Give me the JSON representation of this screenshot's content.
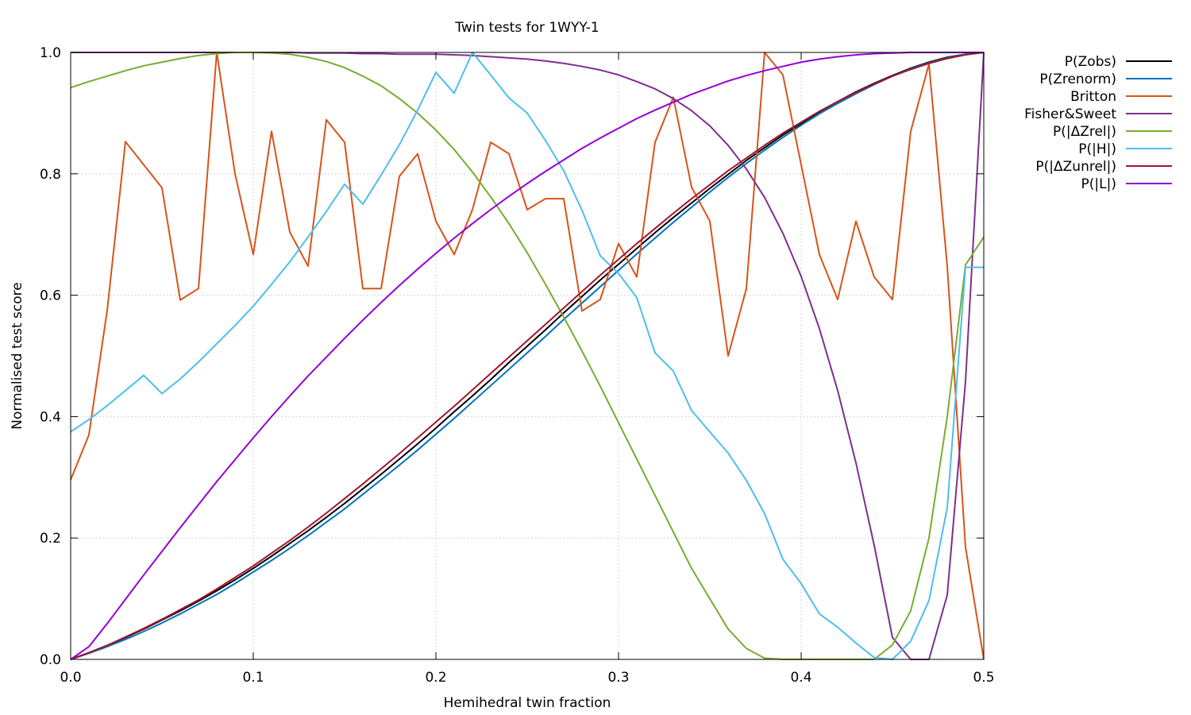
{
  "chart_data": {
    "type": "line",
    "title": "Twin tests for 1WYY-1",
    "xlabel": "Hemihedral twin fraction",
    "ylabel": "Normalised test score",
    "xlim": [
      0,
      0.5
    ],
    "ylim": [
      0,
      1
    ],
    "grid": true,
    "legend_position": "outside-right-top",
    "x_ticks": [
      "0.0",
      "0.1",
      "0.2",
      "0.3",
      "0.4",
      "0.5"
    ],
    "y_ticks": [
      "0.0",
      "0.2",
      "0.4",
      "0.6",
      "0.8",
      "1.0"
    ],
    "x": [
      0.0,
      0.01,
      0.02,
      0.03,
      0.04,
      0.05,
      0.06,
      0.07,
      0.08,
      0.09,
      0.1,
      0.11,
      0.12,
      0.13,
      0.14,
      0.15,
      0.16,
      0.17,
      0.18,
      0.19,
      0.2,
      0.21,
      0.22,
      0.23,
      0.24,
      0.25,
      0.26,
      0.27,
      0.28,
      0.29,
      0.3,
      0.31,
      0.32,
      0.33,
      0.34,
      0.35,
      0.36,
      0.37,
      0.38,
      0.39,
      0.4,
      0.41,
      0.42,
      0.43,
      0.44,
      0.45,
      0.46,
      0.47,
      0.48,
      0.49,
      0.5
    ],
    "series": [
      {
        "name": "P(Zobs)",
        "color": "#000000",
        "values": [
          0,
          0.011,
          0.023,
          0.036,
          0.05,
          0.065,
          0.08,
          0.096,
          0.113,
          0.131,
          0.15,
          0.17,
          0.191,
          0.212,
          0.234,
          0.257,
          0.281,
          0.305,
          0.33,
          0.355,
          0.381,
          0.408,
          0.434,
          0.461,
          0.489,
          0.516,
          0.543,
          0.571,
          0.598,
          0.625,
          0.651,
          0.677,
          0.703,
          0.728,
          0.752,
          0.776,
          0.799,
          0.822,
          0.843,
          0.864,
          0.883,
          0.902,
          0.919,
          0.935,
          0.949,
          0.962,
          0.974,
          0.984,
          0.992,
          0.997,
          1.0
        ]
      },
      {
        "name": "P(Zrenorm)",
        "color": "#0072bd",
        "values": [
          0,
          0.01,
          0.021,
          0.033,
          0.046,
          0.06,
          0.075,
          0.091,
          0.107,
          0.125,
          0.144,
          0.163,
          0.183,
          0.204,
          0.226,
          0.248,
          0.272,
          0.296,
          0.32,
          0.345,
          0.371,
          0.397,
          0.424,
          0.451,
          0.478,
          0.505,
          0.532,
          0.56,
          0.587,
          0.614,
          0.641,
          0.668,
          0.694,
          0.72,
          0.745,
          0.77,
          0.794,
          0.817,
          0.839,
          0.86,
          0.88,
          0.899,
          0.916,
          0.932,
          0.947,
          0.961,
          0.973,
          0.983,
          0.991,
          0.997,
          1.0
        ]
      },
      {
        "name": "Britton",
        "color": "#d95319",
        "values": [
          0.296,
          0.37,
          0.575,
          0.853,
          0.815,
          0.777,
          0.592,
          0.611,
          1.0,
          0.8,
          0.667,
          0.87,
          0.704,
          0.648,
          0.889,
          0.852,
          0.611,
          0.611,
          0.796,
          0.833,
          0.722,
          0.667,
          0.741,
          0.852,
          0.833,
          0.741,
          0.759,
          0.759,
          0.574,
          0.593,
          0.685,
          0.63,
          0.852,
          0.926,
          0.778,
          0.722,
          0.5,
          0.611,
          1.0,
          0.963,
          0.815,
          0.667,
          0.593,
          0.722,
          0.63,
          0.593,
          0.87,
          0.981,
          0.648,
          0.185,
          0.0
        ]
      },
      {
        "name": "Fisher&Sweet",
        "color": "#7e2f8e",
        "values": [
          1.0,
          1.0,
          1.0,
          1.0,
          1.0,
          1.0,
          1.0,
          1.0,
          1.0,
          1.0,
          1.0,
          1.0,
          1.0,
          0.999,
          0.999,
          0.999,
          0.998,
          0.998,
          0.997,
          0.997,
          0.997,
          0.996,
          0.995,
          0.993,
          0.991,
          0.989,
          0.986,
          0.982,
          0.977,
          0.971,
          0.963,
          0.952,
          0.94,
          0.924,
          0.904,
          0.879,
          0.847,
          0.808,
          0.761,
          0.702,
          0.631,
          0.545,
          0.443,
          0.324,
          0.188,
          0.036,
          0.0,
          0.0,
          0.106,
          0.458,
          1.0
        ]
      },
      {
        "name": "P(|ΔZrel|)",
        "color": "#77ac30",
        "values": [
          0.942,
          0.952,
          0.961,
          0.97,
          0.978,
          0.984,
          0.99,
          0.995,
          0.998,
          1.0,
          1.0,
          0.999,
          0.997,
          0.992,
          0.985,
          0.975,
          0.961,
          0.945,
          0.924,
          0.9,
          0.872,
          0.84,
          0.803,
          0.762,
          0.718,
          0.67,
          0.618,
          0.564,
          0.508,
          0.45,
          0.39,
          0.33,
          0.27,
          0.21,
          0.15,
          0.1,
          0.05,
          0.018,
          0.002,
          0.0,
          0.0,
          0.0,
          0.0,
          0.0,
          0.0,
          0.024,
          0.08,
          0.2,
          0.4,
          0.65,
          0.696
        ]
      },
      {
        "name": "P(|H|)",
        "color": "#4dbeee",
        "values": [
          0.375,
          0.395,
          0.418,
          0.443,
          0.468,
          0.438,
          0.462,
          0.49,
          0.52,
          0.55,
          0.582,
          0.618,
          0.655,
          0.696,
          0.738,
          0.783,
          0.75,
          0.798,
          0.848,
          0.905,
          0.967,
          0.933,
          1.0,
          0.963,
          0.925,
          0.9,
          0.855,
          0.805,
          0.74,
          0.665,
          0.636,
          0.596,
          0.505,
          0.475,
          0.41,
          0.375,
          0.34,
          0.295,
          0.24,
          0.165,
          0.125,
          0.075,
          0.053,
          0.027,
          0.003,
          0.0,
          0.03,
          0.097,
          0.25,
          0.646,
          0.646
        ]
      },
      {
        "name": "P(|ΔZunrel|)",
        "color": "#a2142f",
        "values": [
          0,
          0.011,
          0.023,
          0.037,
          0.051,
          0.066,
          0.082,
          0.098,
          0.116,
          0.135,
          0.154,
          0.175,
          0.196,
          0.218,
          0.241,
          0.265,
          0.289,
          0.314,
          0.339,
          0.365,
          0.391,
          0.417,
          0.444,
          0.471,
          0.498,
          0.525,
          0.552,
          0.579,
          0.606,
          0.633,
          0.659,
          0.685,
          0.71,
          0.735,
          0.759,
          0.782,
          0.805,
          0.826,
          0.847,
          0.867,
          0.885,
          0.903,
          0.919,
          0.934,
          0.948,
          0.961,
          0.972,
          0.982,
          0.99,
          0.996,
          1.0
        ]
      },
      {
        "name": "P(|L|)",
        "color": "#9400d3",
        "values": [
          0,
          0.021,
          0.059,
          0.099,
          0.139,
          0.178,
          0.217,
          0.255,
          0.293,
          0.329,
          0.365,
          0.4,
          0.434,
          0.467,
          0.498,
          0.529,
          0.559,
          0.588,
          0.616,
          0.643,
          0.669,
          0.694,
          0.718,
          0.741,
          0.763,
          0.784,
          0.804,
          0.823,
          0.842,
          0.859,
          0.875,
          0.891,
          0.905,
          0.918,
          0.931,
          0.942,
          0.953,
          0.962,
          0.97,
          0.977,
          0.984,
          0.989,
          0.993,
          0.996,
          0.998,
          0.999,
          1.0,
          1.0,
          1.0,
          1.0,
          1.0
        ]
      }
    ]
  }
}
